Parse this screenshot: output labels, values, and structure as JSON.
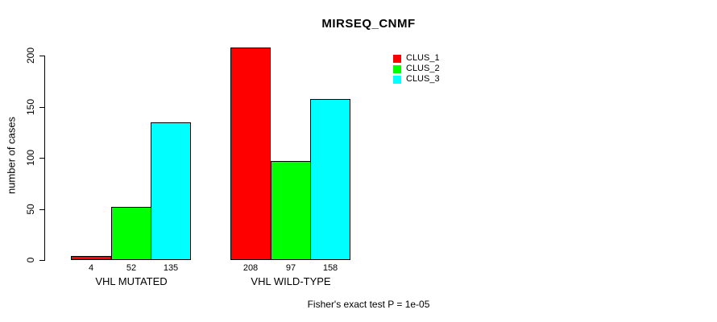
{
  "chart_data": {
    "type": "bar",
    "title": "MIRSEQ_CNMF",
    "xlabel": "",
    "ylabel": "number of cases",
    "categories": [
      "VHL MUTATED",
      "VHL WILD-TYPE"
    ],
    "series": [
      {
        "name": "CLUS_1",
        "color": "#ff0000",
        "values": [
          4,
          208
        ]
      },
      {
        "name": "CLUS_2",
        "color": "#00ff00",
        "values": [
          52,
          97
        ]
      },
      {
        "name": "CLUS_3",
        "color": "#00ffff",
        "values": [
          135,
          158
        ]
      }
    ],
    "yticks": [
      0,
      50,
      100,
      150,
      200
    ],
    "ylim": [
      0,
      215
    ],
    "grid": false,
    "bar_value_labels_shown": true,
    "legend_position": "top-right",
    "legend_labels": [
      "CLUS_1",
      "CLUS_2",
      "CLUS_3"
    ],
    "annotation": "Fisher's exact test P = 1e-05",
    "axis_color": "#000000",
    "bar_border_color": "#000000"
  }
}
